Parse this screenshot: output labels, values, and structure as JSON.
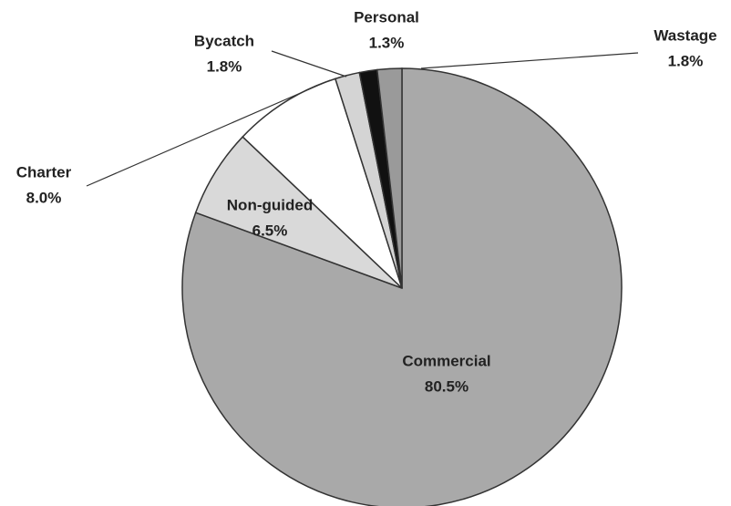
{
  "chart_data": {
    "type": "pie",
    "categories": [
      "Commercial",
      "Non-guided",
      "Charter",
      "Bycatch",
      "Personal",
      "Wastage"
    ],
    "values": [
      80.5,
      6.5,
      8.0,
      1.8,
      1.3,
      1.8
    ],
    "value_labels": [
      "80.5%",
      "6.5%",
      "8.0%",
      "1.8%",
      "1.3%",
      "1.8%"
    ],
    "colors": [
      "#a9a9a9",
      "#d9d9d9",
      "#ffffff",
      "#d4d4d4",
      "#111111",
      "#9a9a9a"
    ]
  }
}
